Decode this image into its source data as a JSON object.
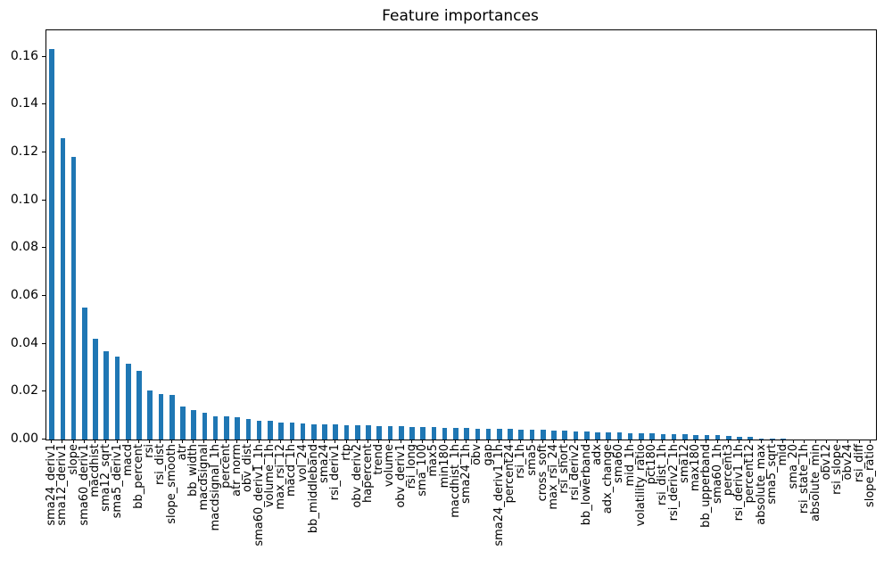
{
  "chart_data": {
    "type": "bar",
    "title": "Feature importances",
    "xlabel": "",
    "ylabel": "",
    "grid": false,
    "legend": "none",
    "bar_color": "#1f77b4",
    "ylim": [
      0,
      0.171
    ],
    "yticks": [
      0.0,
      0.02,
      0.04,
      0.06,
      0.08,
      0.1,
      0.12,
      0.14,
      0.16
    ],
    "ytick_labels": [
      "0.00",
      "0.02",
      "0.04",
      "0.06",
      "0.08",
      "0.10",
      "0.12",
      "0.14",
      "0.16"
    ],
    "categories": [
      "sma24_deriv1",
      "sma12_deriv1",
      "slope",
      "sma60_deriv1",
      "macdhist",
      "sma12_sqrt",
      "sma5_deriv1",
      "macd",
      "bb_percent",
      "rsi",
      "rsi_dist",
      "slope_smooth",
      "atr",
      "bb_width",
      "macdsignal",
      "macdsignal_1h",
      "percent",
      "atr_norm",
      "obv_dist",
      "sma60_deriv1_1h",
      "volume_1h",
      "max_rsi_12",
      "macd_1h",
      "vol_24",
      "bb_middleband",
      "sma24",
      "rsi_deriv1",
      "rtp",
      "obv_deriv2",
      "hapercent",
      "trend",
      "volume",
      "obv_deriv1",
      "rsi_long",
      "sma_100",
      "max5",
      "min180",
      "macdhist_1h",
      "sma24_1h",
      "obv",
      "gap",
      "sma24_deriv1_1h",
      "percent24",
      "rsi_1h",
      "sma5",
      "cross_soft",
      "max_rsi_24",
      "rsi_short",
      "rsi_deriv2",
      "bb_lowerband",
      "adx",
      "adx_change",
      "sma60",
      "mid_1h",
      "volatility_ratio",
      "pct180",
      "rsi_dist_1h",
      "rsi_deriv2_1h",
      "sma12",
      "max180",
      "bb_upperband",
      "sma60_1h",
      "percent3",
      "rsi_deriv1_1h",
      "percent12",
      "absolute_max",
      "sma5_sqrt",
      "mid",
      "sma_20",
      "rsi_state_1h",
      "absolute_min",
      "obv12",
      "rsi_slope",
      "obv24",
      "rsi_diff",
      "slope_ratio"
    ],
    "values": [
      0.163,
      0.126,
      0.118,
      0.055,
      0.042,
      0.037,
      0.0345,
      0.0318,
      0.0287,
      0.0206,
      0.0189,
      0.0188,
      0.0138,
      0.0122,
      0.0113,
      0.0097,
      0.0096,
      0.0093,
      0.0086,
      0.0078,
      0.0077,
      0.007,
      0.0069,
      0.0068,
      0.0064,
      0.0063,
      0.0062,
      0.0061,
      0.006,
      0.0058,
      0.0057,
      0.0056,
      0.0055,
      0.0054,
      0.0053,
      0.0051,
      0.005,
      0.0048,
      0.0047,
      0.0046,
      0.0045,
      0.0044,
      0.0043,
      0.0042,
      0.0041,
      0.004,
      0.0039,
      0.0036,
      0.0033,
      0.0032,
      0.0031,
      0.0029,
      0.0028,
      0.0027,
      0.0026,
      0.0025,
      0.0024,
      0.0023,
      0.0022,
      0.0019,
      0.0018,
      0.0017,
      0.0014,
      0.0013,
      0.0011,
      0.0005,
      0.0002,
      0.0002,
      0.0001,
      0.0001,
      0.0001,
      0.0001,
      0.0001,
      0.0001,
      0.0,
      0.0
    ]
  }
}
